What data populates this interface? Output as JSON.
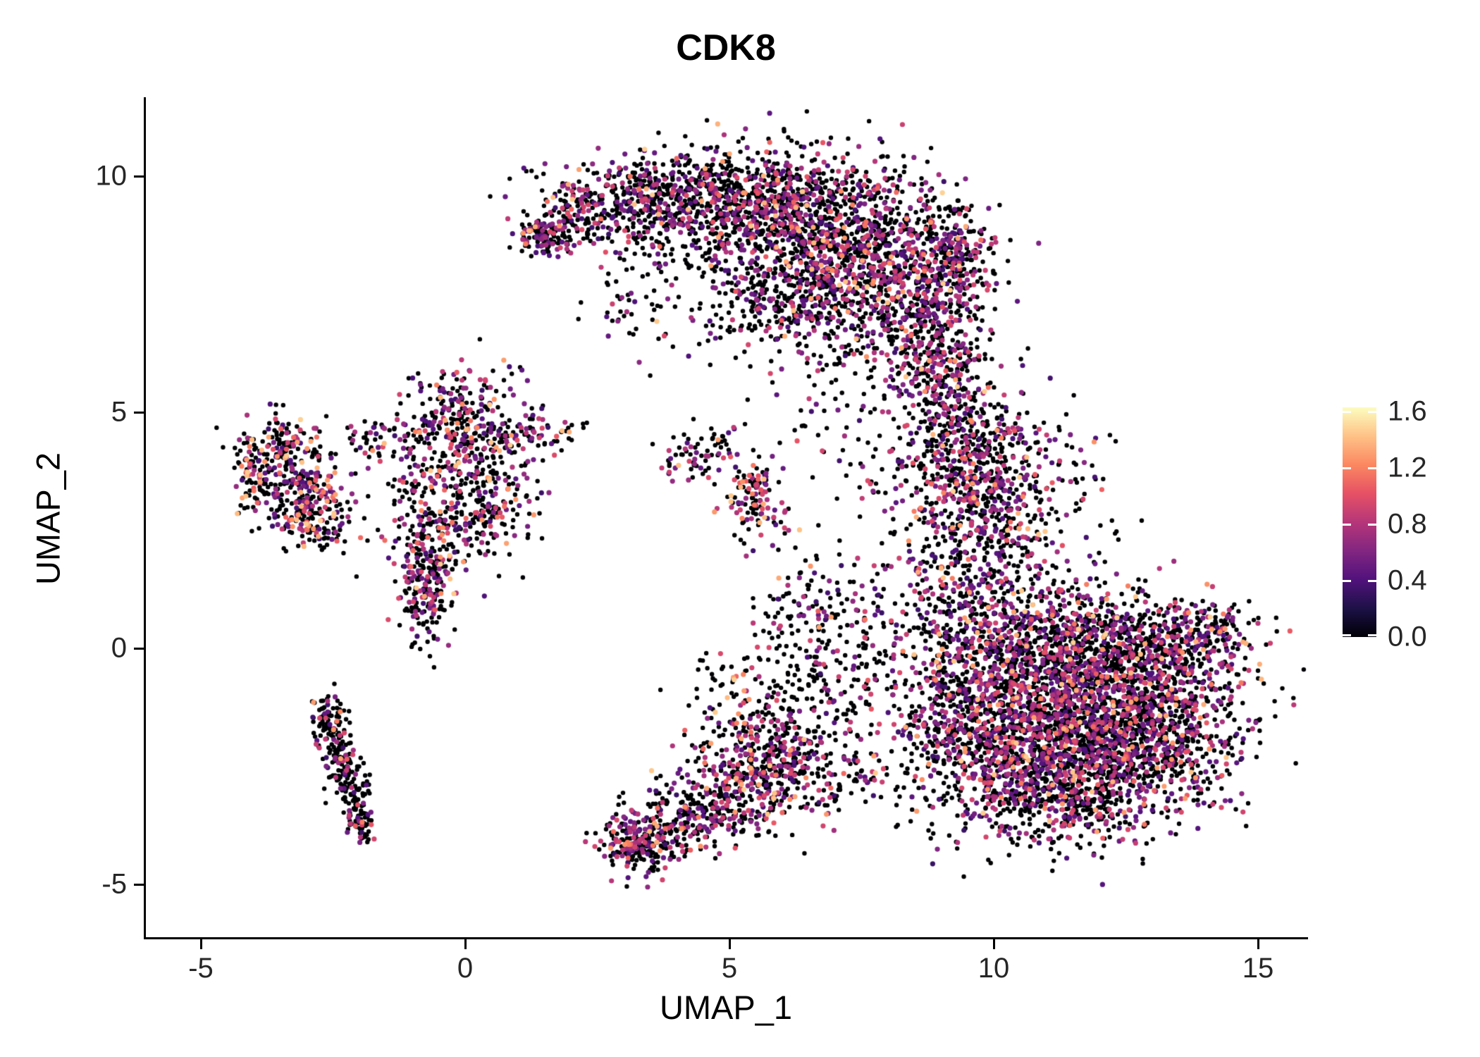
{
  "title": "CDK8",
  "axes": {
    "x": {
      "label": "UMAP_1",
      "ticks": [
        {
          "value": -5,
          "label": "-5"
        },
        {
          "value": 0,
          "label": "0"
        },
        {
          "value": 5,
          "label": "5"
        },
        {
          "value": 10,
          "label": "10"
        },
        {
          "value": 15,
          "label": "15"
        }
      ]
    },
    "y": {
      "label": "UMAP_2",
      "ticks": [
        {
          "value": 10,
          "label": "10"
        },
        {
          "value": 5,
          "label": "5"
        },
        {
          "value": 0,
          "label": "0"
        },
        {
          "value": -5,
          "label": "-5"
        }
      ]
    }
  },
  "colorbar": {
    "min": 0.0,
    "max": 1.6,
    "ticks": [
      {
        "value": 1.6,
        "label": "1.6"
      },
      {
        "value": 1.2,
        "label": "1.2"
      },
      {
        "value": 0.8,
        "label": "0.8"
      },
      {
        "value": 0.4,
        "label": "0.4"
      },
      {
        "value": 0.0,
        "label": "0.0"
      }
    ],
    "palette_name": "magma",
    "palette": [
      "#000004",
      "#1D1147",
      "#51127C",
      "#822681",
      "#B63679",
      "#E65164",
      "#FB8861",
      "#FEC287",
      "#FCFDBF"
    ]
  },
  "chart_data": {
    "type": "scatter",
    "title": "CDK8",
    "xlabel": "UMAP_1",
    "ylabel": "UMAP_2",
    "xlim": [
      -6,
      16
    ],
    "ylim": [
      -6.2,
      11.7
    ],
    "grid": false,
    "legend_position": "right",
    "color_scale": {
      "variable": "CDK8 expression",
      "min": 0.0,
      "max": 1.6,
      "zero_color": "#000004"
    },
    "point_style": {
      "radius_zero_px": 3.2,
      "radius_expr_px": 3.6
    },
    "value_ranges": {
      "mid": [
        0.3,
        0.95
      ],
      "hot": [
        0.95,
        1.45
      ]
    },
    "seed": 42,
    "representation": "generative_clusters",
    "clusters": [
      {
        "cx": 1.45,
        "cy": 8.75,
        "sx": 0.25,
        "sy": 0.2,
        "n": 110,
        "p0": 0.55,
        "pMid": 0.4
      },
      {
        "cx": 2.6,
        "cy": 9.3,
        "sx": 0.8,
        "sy": 0.45,
        "n": 330,
        "p0": 0.62,
        "pMid": 0.33
      },
      {
        "cx": 4.3,
        "cy": 9.7,
        "sx": 0.9,
        "sy": 0.5,
        "n": 380,
        "p0": 0.66,
        "pMid": 0.3
      },
      {
        "cx": 5.8,
        "cy": 9.4,
        "sx": 0.9,
        "sy": 0.6,
        "n": 520,
        "p0": 0.62,
        "pMid": 0.33
      },
      {
        "cx": 7.3,
        "cy": 8.6,
        "sx": 1.0,
        "sy": 0.9,
        "n": 900,
        "p0": 0.62,
        "pMid": 0.33
      },
      {
        "cx": 8.6,
        "cy": 7.2,
        "sx": 0.7,
        "sy": 0.9,
        "n": 520,
        "p0": 0.6,
        "pMid": 0.35
      },
      {
        "cx": 6.3,
        "cy": 7.3,
        "sx": 0.9,
        "sy": 0.7,
        "n": 380,
        "p0": 0.65,
        "pMid": 0.3
      },
      {
        "cx": 5.0,
        "cy": 8.4,
        "sx": 0.7,
        "sy": 0.5,
        "n": 80,
        "p0": 0.7,
        "pMid": 0.27
      },
      {
        "cx": 3.6,
        "cy": 8.6,
        "sx": 0.6,
        "sy": 0.5,
        "n": 50,
        "p0": 0.7,
        "pMid": 0.27
      },
      {
        "cx": 9.3,
        "cy": 8.4,
        "sx": 0.35,
        "sy": 0.5,
        "n": 150,
        "p0": 0.6,
        "pMid": 0.35
      },
      {
        "cx": 3.3,
        "cy": 7.1,
        "sx": 0.7,
        "sy": 0.5,
        "n": 50,
        "p0": 0.72,
        "pMid": 0.25
      },
      {
        "cx": 9.0,
        "cy": 5.6,
        "sx": 0.45,
        "sy": 0.7,
        "n": 200,
        "p0": 0.6,
        "pMid": 0.35
      },
      {
        "cx": 9.5,
        "cy": 4.2,
        "sx": 0.55,
        "sy": 0.8,
        "n": 320,
        "p0": 0.6,
        "pMid": 0.34
      },
      {
        "cx": 9.9,
        "cy": 2.8,
        "sx": 0.7,
        "sy": 0.8,
        "n": 380,
        "p0": 0.6,
        "pMid": 0.34
      },
      {
        "cx": 10.8,
        "cy": 3.6,
        "sx": 0.8,
        "sy": 0.9,
        "n": 120,
        "p0": 0.7,
        "pMid": 0.27
      },
      {
        "cx": 8.3,
        "cy": 3.3,
        "sx": 0.6,
        "sy": 1.2,
        "n": 90,
        "p0": 0.7,
        "pMid": 0.25
      },
      {
        "cx": 6.9,
        "cy": 4.7,
        "sx": 0.8,
        "sy": 0.6,
        "n": 35,
        "p0": 0.7,
        "pMid": 0.26
      },
      {
        "cx": 10.7,
        "cy": -0.6,
        "sx": 1.1,
        "sy": 0.9,
        "n": 900,
        "p0": 0.6,
        "pMid": 0.34
      },
      {
        "cx": 12.0,
        "cy": -1.3,
        "sx": 1.2,
        "sy": 1.0,
        "n": 1100,
        "p0": 0.62,
        "pMid": 0.33
      },
      {
        "cx": 10.6,
        "cy": -2.4,
        "sx": 0.9,
        "sy": 0.8,
        "n": 600,
        "p0": 0.62,
        "pMid": 0.33
      },
      {
        "cx": 12.9,
        "cy": -2.2,
        "sx": 0.9,
        "sy": 0.7,
        "n": 450,
        "p0": 0.62,
        "pMid": 0.33
      },
      {
        "cx": 13.4,
        "cy": -0.4,
        "sx": 0.7,
        "sy": 0.7,
        "n": 380,
        "p0": 0.62,
        "pMid": 0.33
      },
      {
        "cx": 12.2,
        "cy": 0.4,
        "sx": 1.0,
        "sy": 0.5,
        "n": 300,
        "p0": 0.62,
        "pMid": 0.33
      },
      {
        "cx": 14.2,
        "cy": 0.35,
        "sx": 0.25,
        "sy": 0.3,
        "n": 80,
        "p0": 0.6,
        "pMid": 0.35
      },
      {
        "cx": 11.3,
        "cy": -3.3,
        "sx": 0.9,
        "sy": 0.45,
        "n": 260,
        "p0": 0.62,
        "pMid": 0.33
      },
      {
        "cx": 9.7,
        "cy": 0.8,
        "sx": 0.6,
        "sy": 0.8,
        "n": 280,
        "p0": 0.6,
        "pMid": 0.34
      },
      {
        "cx": 9.2,
        "cy": -1.5,
        "sx": 0.6,
        "sy": 1.0,
        "n": 300,
        "p0": 0.6,
        "pMid": 0.34
      },
      {
        "cx": 7.6,
        "cy": 0.2,
        "sx": 0.9,
        "sy": 1.0,
        "n": 160,
        "p0": 0.68,
        "pMid": 0.28
      },
      {
        "cx": 6.7,
        "cy": -0.9,
        "sx": 0.7,
        "sy": 0.8,
        "n": 120,
        "p0": 0.68,
        "pMid": 0.28
      },
      {
        "cx": 6.3,
        "cy": 0.9,
        "sx": 0.5,
        "sy": 0.9,
        "n": 80,
        "p0": 0.7,
        "pMid": 0.26
      },
      {
        "cx": 3.3,
        "cy": -4.1,
        "sx": 0.35,
        "sy": 0.3,
        "n": 200,
        "p0": 0.6,
        "pMid": 0.35
      },
      {
        "cx": 4.3,
        "cy": -3.6,
        "sx": 0.6,
        "sy": 0.4,
        "n": 240,
        "p0": 0.62,
        "pMid": 0.33
      },
      {
        "cx": 5.4,
        "cy": -2.9,
        "sx": 0.6,
        "sy": 0.5,
        "n": 260,
        "p0": 0.6,
        "pMid": 0.34
      },
      {
        "cx": 5.9,
        "cy": -2.0,
        "sx": 0.5,
        "sy": 0.5,
        "n": 180,
        "p0": 0.6,
        "pMid": 0.33
      },
      {
        "cx": 6.9,
        "cy": -2.6,
        "sx": 0.7,
        "sy": 0.5,
        "n": 140,
        "p0": 0.65,
        "pMid": 0.3
      },
      {
        "cx": 5.0,
        "cy": -1.2,
        "sx": 0.5,
        "sy": 0.6,
        "n": 80,
        "p0": 0.62,
        "pMid": 0.3
      },
      {
        "cx": 5.45,
        "cy": 3.2,
        "sx": 0.28,
        "sy": 0.38,
        "n": 120,
        "p0": 0.45,
        "pMid": 0.35
      },
      {
        "cx": 4.8,
        "cy": 4.2,
        "sx": 0.45,
        "sy": 0.3,
        "n": 50,
        "p0": 0.65,
        "pMid": 0.3
      },
      {
        "cx": 4.15,
        "cy": 3.9,
        "sx": 0.2,
        "sy": 0.25,
        "n": 25,
        "p0": 0.6,
        "pMid": 0.35
      },
      {
        "cx": -3.5,
        "cy": 4.25,
        "sx": 0.4,
        "sy": 0.3,
        "n": 140,
        "p0": 0.55,
        "pMid": 0.3
      },
      {
        "cx": -3.0,
        "cy": 3.2,
        "sx": 0.4,
        "sy": 0.45,
        "n": 220,
        "p0": 0.55,
        "pMid": 0.3
      },
      {
        "cx": -3.9,
        "cy": 3.6,
        "sx": 0.25,
        "sy": 0.4,
        "n": 80,
        "p0": 0.55,
        "pMid": 0.35
      },
      {
        "cx": -2.6,
        "cy": 2.7,
        "sx": 0.3,
        "sy": 0.3,
        "n": 60,
        "p0": 0.6,
        "pMid": 0.3
      },
      {
        "cx": -0.1,
        "cy": 4.6,
        "sx": 0.6,
        "sy": 0.5,
        "n": 260,
        "p0": 0.6,
        "pMid": 0.3
      },
      {
        "cx": 0.4,
        "cy": 3.3,
        "sx": 0.55,
        "sy": 0.6,
        "n": 200,
        "p0": 0.62,
        "pMid": 0.3
      },
      {
        "cx": -0.4,
        "cy": 2.4,
        "sx": 0.5,
        "sy": 0.6,
        "n": 160,
        "p0": 0.62,
        "pMid": 0.32
      },
      {
        "cx": -0.75,
        "cy": 1.2,
        "sx": 0.25,
        "sy": 0.55,
        "n": 170,
        "p0": 0.58,
        "pMid": 0.36
      },
      {
        "cx": 1.3,
        "cy": 4.55,
        "sx": 0.45,
        "sy": 0.2,
        "n": 60,
        "p0": 0.6,
        "pMid": 0.32
      },
      {
        "cx": 0.3,
        "cy": 5.4,
        "sx": 0.5,
        "sy": 0.4,
        "n": 50,
        "p0": 0.65,
        "pMid": 0.3
      },
      {
        "cx": -0.9,
        "cy": 3.4,
        "sx": 0.5,
        "sy": 0.8,
        "n": 90,
        "p0": 0.65,
        "pMid": 0.3
      },
      {
        "cx": -1.7,
        "cy": 4.4,
        "sx": 0.3,
        "sy": 0.25,
        "n": 35,
        "p0": 0.6,
        "pMid": 0.3
      },
      {
        "cx": -2.55,
        "cy": -1.7,
        "sx": 0.18,
        "sy": 0.3,
        "n": 70,
        "p0": 0.75,
        "pMid": 0.22
      },
      {
        "cx": -2.35,
        "cy": -2.4,
        "sx": 0.15,
        "sy": 0.35,
        "n": 80,
        "p0": 0.75,
        "pMid": 0.22
      },
      {
        "cx": -2.1,
        "cy": -3.1,
        "sx": 0.15,
        "sy": 0.35,
        "n": 80,
        "p0": 0.75,
        "pMid": 0.22
      },
      {
        "cx": -1.95,
        "cy": -3.65,
        "sx": 0.12,
        "sy": 0.2,
        "n": 50,
        "p0": 0.75,
        "pMid": 0.22
      },
      {
        "cx": -2.7,
        "cy": -1.35,
        "sx": 0.12,
        "sy": 0.15,
        "n": 30,
        "p0": 0.75,
        "pMid": 0.22
      }
    ]
  }
}
